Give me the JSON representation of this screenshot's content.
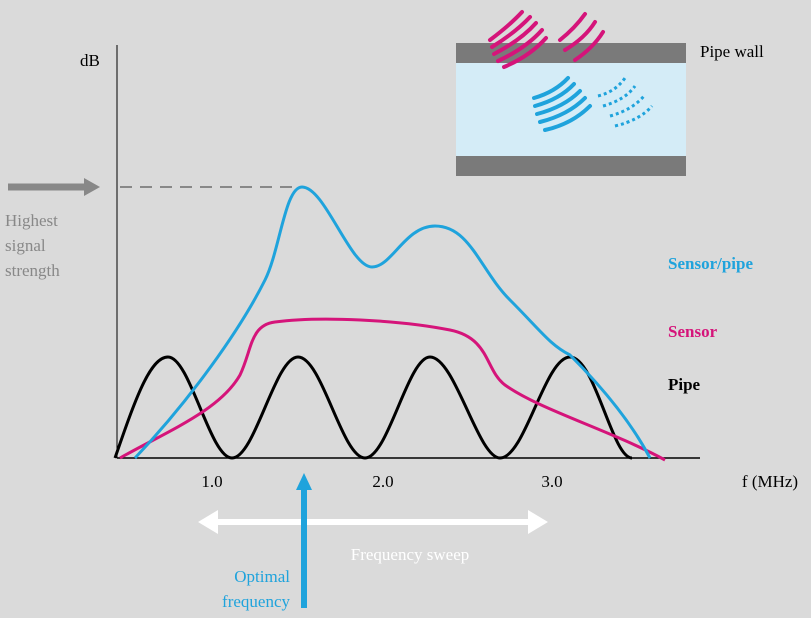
{
  "axis": {
    "y_label": "dB",
    "x_label": "f (MHz)",
    "ticks": [
      "1.0",
      "2.0",
      "3.0"
    ]
  },
  "legend": [
    "Sensor/pipe",
    "Sensor",
    "Pipe"
  ],
  "inset": {
    "label": "Pipe wall"
  },
  "annotations": {
    "highest": [
      "Highest",
      "signal",
      "strength"
    ],
    "sweep": "Frequency sweep",
    "optimal": [
      "Optimal",
      "frequency"
    ]
  }
}
